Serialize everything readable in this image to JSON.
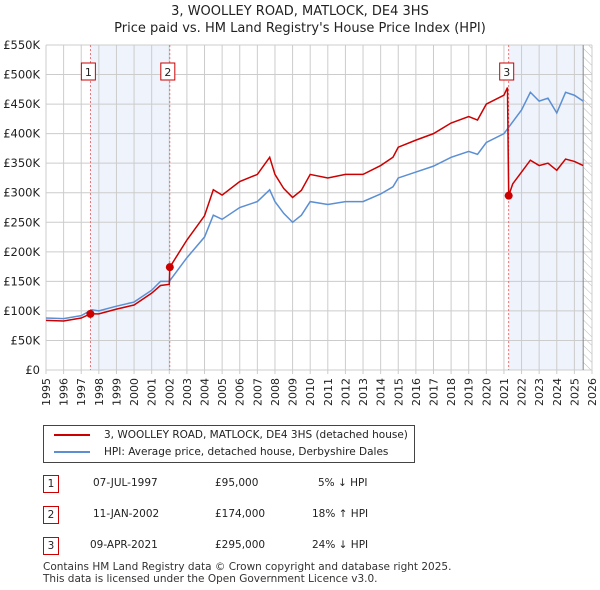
{
  "chart_data": {
    "type": "line",
    "title": "3, WOOLLEY ROAD, MATLOCK, DE4 3HS",
    "subtitle": "Price paid vs. HM Land Registry's House Price Index (HPI)",
    "xlim": [
      1995,
      2026
    ],
    "ylim": [
      0,
      550000
    ],
    "x_ticks": [
      "1995",
      "1996",
      "1997",
      "1998",
      "1999",
      "2000",
      "2001",
      "2002",
      "2003",
      "2004",
      "2005",
      "2006",
      "2007",
      "2008",
      "2009",
      "2010",
      "2011",
      "2012",
      "2013",
      "2014",
      "2015",
      "2016",
      "2017",
      "2018",
      "2019",
      "2020",
      "2021",
      "2022",
      "2023",
      "2024",
      "2025",
      "2026"
    ],
    "y_ticks": [
      {
        "v": 0,
        "label": "£0"
      },
      {
        "v": 50000,
        "label": "£50K"
      },
      {
        "v": 100000,
        "label": "£100K"
      },
      {
        "v": 150000,
        "label": "£150K"
      },
      {
        "v": 200000,
        "label": "£200K"
      },
      {
        "v": 250000,
        "label": "£250K"
      },
      {
        "v": 300000,
        "label": "£300K"
      },
      {
        "v": 350000,
        "label": "£350K"
      },
      {
        "v": 400000,
        "label": "£400K"
      },
      {
        "v": 450000,
        "label": "£450K"
      },
      {
        "v": 500000,
        "label": "£500K"
      },
      {
        "v": 550000,
        "label": "£550K"
      }
    ],
    "series": [
      {
        "name": "3, WOOLLEY ROAD, MATLOCK, DE4 3HS (detached house)",
        "color": "#cc0000",
        "x": [
          1995,
          1996,
          1997,
          1997.52,
          1998,
          1999,
          2000,
          2001,
          2001.5,
          2002.0,
          2002.03,
          2003,
          2004,
          2004.5,
          2005,
          2006,
          2007,
          2007.7,
          2008,
          2008.5,
          2009,
          2009.5,
          2010,
          2011,
          2012,
          2013,
          2014,
          2014.7,
          2015,
          2016,
          2017,
          2018,
          2019,
          2019.5,
          2020,
          2021,
          2021.2,
          2021.27,
          2021.5,
          2022,
          2022.5,
          2023,
          2023.5,
          2024,
          2024.5,
          2025,
          2025.5
        ],
        "y": [
          84000,
          83000,
          88000,
          95000,
          95000,
          103000,
          110000,
          130000,
          143000,
          145000,
          174000,
          220000,
          261000,
          305000,
          296000,
          319000,
          331000,
          360000,
          331000,
          307000,
          292000,
          304000,
          331000,
          325000,
          331000,
          331000,
          346000,
          360000,
          377000,
          389000,
          400000,
          418000,
          429000,
          423000,
          450000,
          465000,
          478000,
          295000,
          315000,
          335000,
          355000,
          346000,
          350000,
          338000,
          357000,
          353000,
          346000
        ]
      },
      {
        "name": "HPI: Average price, detached house, Derbyshire Dales",
        "color": "#5b8fd4",
        "x": [
          1995,
          1996,
          1997,
          1997.6,
          1998,
          1999,
          2000,
          2001,
          2001.5,
          2002,
          2003,
          2004,
          2004.5,
          2005,
          2006,
          2007,
          2007.7,
          2008,
          2008.5,
          2009,
          2009.5,
          2010,
          2011,
          2012,
          2013,
          2014,
          2014.7,
          2015,
          2016,
          2017,
          2018,
          2019,
          2019.5,
          2020,
          2021,
          2021.5,
          2022,
          2022.5,
          2023,
          2023.5,
          2024,
          2024.5,
          2025,
          2025.5
        ],
        "y": [
          88000,
          87000,
          92000,
          102000,
          100000,
          108000,
          115000,
          135000,
          150000,
          150000,
          190000,
          225000,
          262000,
          255000,
          275000,
          285000,
          305000,
          285000,
          265000,
          250000,
          262000,
          285000,
          280000,
          285000,
          285000,
          298000,
          310000,
          325000,
          335000,
          345000,
          360000,
          370000,
          365000,
          385000,
          400000,
          420000,
          440000,
          470000,
          455000,
          460000,
          435000,
          470000,
          465000,
          455000
        ]
      }
    ],
    "sales": [
      {
        "n": "1",
        "x": 1997.52,
        "y": 95000
      },
      {
        "n": "2",
        "x": 2002.03,
        "y": 174000
      },
      {
        "n": "3",
        "x": 2021.27,
        "y": 295000
      }
    ],
    "shaded": [
      [
        1997.52,
        2002.03
      ],
      [
        2021.27,
        2025.5
      ]
    ],
    "hatched_from": 2025.5,
    "grid": true
  },
  "legend": {
    "red": "3, WOOLLEY ROAD, MATLOCK, DE4 3HS (detached house)",
    "blue": "HPI: Average price, detached house, Derbyshire Dales"
  },
  "transactions": [
    {
      "n": "1",
      "date": "07-JUL-1997",
      "price": "£95,000",
      "hpi": "5% ↓ HPI"
    },
    {
      "n": "2",
      "date": "11-JAN-2002",
      "price": "£174,000",
      "hpi": "18% ↑ HPI"
    },
    {
      "n": "3",
      "date": "09-APR-2021",
      "price": "£295,000",
      "hpi": "24% ↓ HPI"
    }
  ],
  "footer": [
    "Contains HM Land Registry data © Crown copyright and database right 2025.",
    "This data is licensed under the Open Government Licence v3.0."
  ]
}
